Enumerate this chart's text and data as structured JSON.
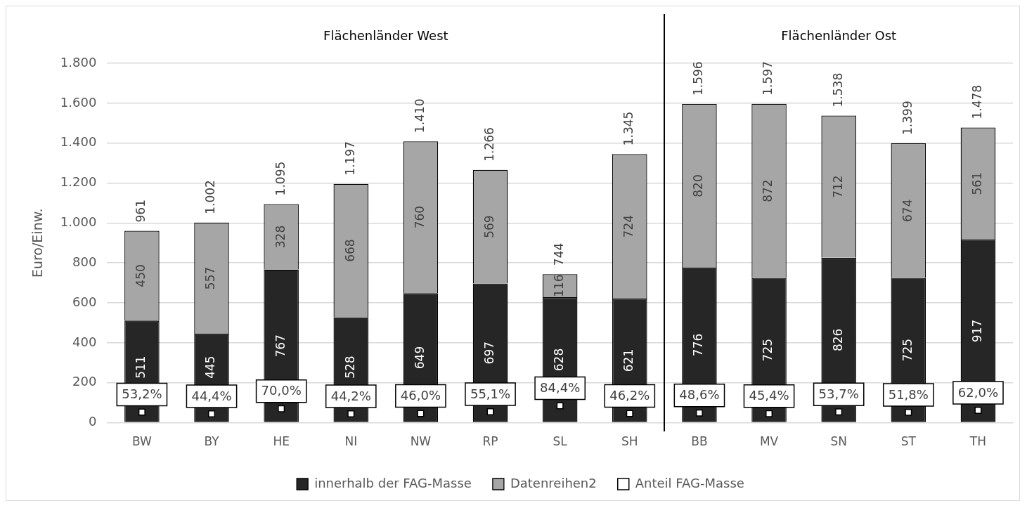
{
  "chart_data": {
    "type": "bar",
    "stacked": true,
    "ylabel": "Euro/Einw.",
    "categories": [
      "BW",
      "BY",
      "HE",
      "NI",
      "NW",
      "RP",
      "SL",
      "SH",
      "BB",
      "MV",
      "SN",
      "ST",
      "TH"
    ],
    "series": [
      {
        "name": "innerhalb der FAG-Masse",
        "color": "#262626",
        "values": [
          511,
          445,
          767,
          528,
          649,
          697,
          628,
          621,
          776,
          725,
          826,
          725,
          917
        ]
      },
      {
        "name": "Datenreihen2",
        "color": "#a6a6a6",
        "values": [
          450,
          557,
          328,
          668,
          760,
          569,
          116,
          724,
          820,
          872,
          712,
          674,
          561
        ]
      },
      {
        "name": "Anteil FAG-Masse",
        "type": "scatter",
        "color": "#ffffff",
        "values": [
          53.2,
          44.4,
          70.0,
          44.2,
          46.0,
          55.1,
          84.4,
          46.2,
          48.6,
          45.4,
          53.7,
          51.8,
          62.0
        ],
        "value_labels": [
          "53,2%",
          "44,4%",
          "70,0%",
          "44,2%",
          "46,0%",
          "55,1%",
          "84,4%",
          "46,2%",
          "48,6%",
          "45,4%",
          "53,7%",
          "51,8%",
          "62,0%"
        ]
      }
    ],
    "totals": [
      "961",
      "1.002",
      "1.095",
      "1.197",
      "1.410",
      "1.266",
      "744",
      "1.345",
      "1.596",
      "1.597",
      "1.538",
      "1.399",
      "1.478"
    ],
    "data_labels": true,
    "ylim": [
      0,
      1800
    ],
    "yticks": [
      0,
      200,
      400,
      600,
      800,
      {
        "value": 1000,
        "label": "1.000"
      },
      {
        "value": 1200,
        "label": "1.200"
      },
      {
        "value": 1400,
        "label": "1.400"
      },
      {
        "value": 1600,
        "label": "1.600"
      },
      {
        "value": 1800,
        "label": "1.800"
      }
    ],
    "grid": "y",
    "legend": "bottom",
    "marker": "square",
    "annotations": [
      "Flächenländer West",
      "Flächenländer Ost"
    ]
  }
}
